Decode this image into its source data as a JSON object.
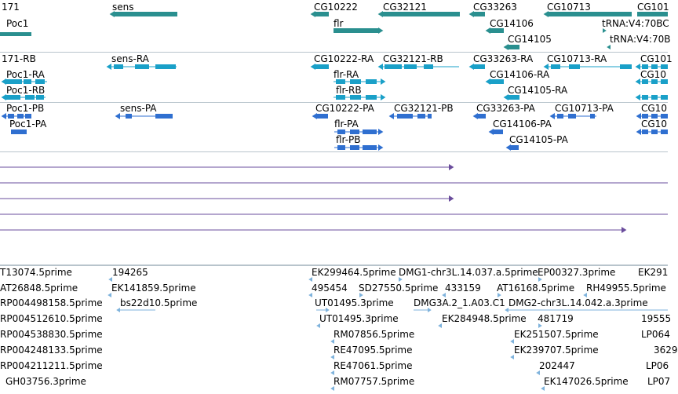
{
  "colors": {
    "gene": "#2a8f8f",
    "mrna": "#1aa0c8",
    "protein": "#2f6fd0",
    "line": "#6a4c9c",
    "est": "#7fb3dc",
    "separator": "#b8c4cc"
  },
  "gene_track": {
    "labels": [
      "171",
      "Poc1",
      "sens",
      "flr",
      "CG10222",
      "CG32121",
      "CG33263",
      "CG14106",
      "CG14105",
      "CG10713",
      "CG101",
      "tRNA:V4:70BC",
      "tRNA:V4:70B"
    ]
  },
  "mrna_track": {
    "labels": [
      "171-RB",
      "Poc1-RA",
      "Poc1-RB",
      "sens-RA",
      "CG10222-RA",
      "flr-RA",
      "flr-RB",
      "CG32121-RB",
      "CG33263-RA",
      "CG14106-RA",
      "CG14105-RA",
      "CG10713-RA",
      "CG101",
      "CG10"
    ]
  },
  "protein_track": {
    "labels": [
      "Poc1-PB",
      "Poc1-PA",
      "sens-PA",
      "CG10222-PA",
      "flr-PA",
      "flr-PB",
      "CG32121-PB",
      "CG33263-PA",
      "CG14106-PA",
      "CG14105-PA",
      "CG10713-PA",
      "CG10",
      "CG10"
    ]
  },
  "est_track": {
    "labels": [
      "T13074.5prime",
      "AT26848.5prime",
      "RP004498158.5prime",
      "RP004512610.5prime",
      "RP004538830.5prime",
      "RP004248133.5prime",
      "RP004211211.5prime",
      "GH03756.3prime",
      "194265",
      "EK141859.5prime",
      "bs22d10.5prime",
      "EK299464.5prime",
      "DMG1-chr3L.14.037.a.5prime",
      "EP00327.3prime",
      "EK291",
      "495454",
      "SD27550.5prime",
      "433159",
      "AT16168.5prime",
      "RH49955.5prime",
      "UT01495.3prime",
      "DMG3A.2_1.A03.C1",
      "DMG2-chr3L.14.042.a.3prime",
      "UT01495.3prime",
      "EK284948.5prime",
      "481719",
      "19555",
      "RM07856.5prime",
      "EK251507.5prime",
      "LP064",
      "RE47095.5prime",
      "EK239707.5prime",
      "3629",
      "RE47061.5prime",
      "202447",
      "LP06",
      "RM07757.5prime",
      "EK147026.5prime",
      "LP07"
    ]
  }
}
